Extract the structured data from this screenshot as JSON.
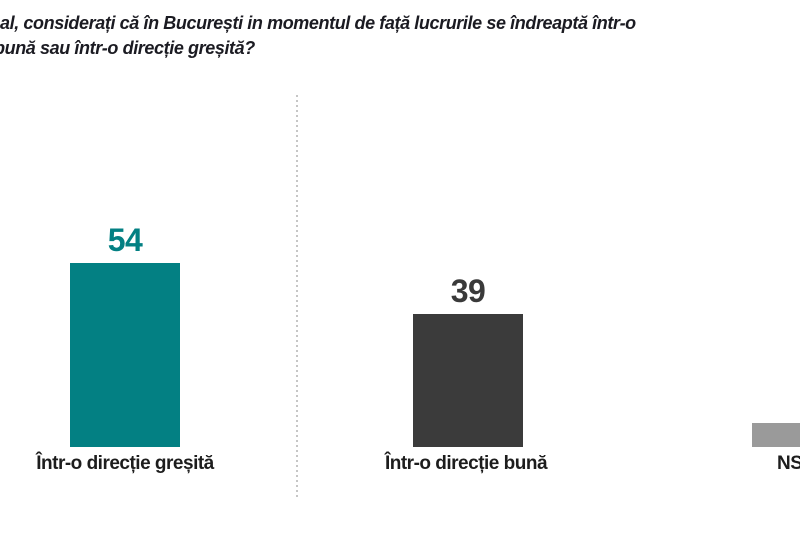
{
  "title": {
    "line1": "al, considerați că în București in momentul de față lucrurile se îndreaptă într-o",
    "line2": "bună sau într-o direcție greșită?"
  },
  "chart_data": {
    "type": "bar",
    "title": "al, considerați că în București in momentul de față lucrurile se îndreaptă într-o bună sau într-o direcție greșită? (question partially cropped at left edge)",
    "categories": [
      "Într-o direcție greșită",
      "Într-o direcție bună",
      "NS"
    ],
    "values": [
      54,
      39,
      7
    ],
    "value_labels": [
      "54",
      "39",
      ""
    ],
    "xlabel": "",
    "ylabel": "",
    "ylim": [
      0,
      60
    ],
    "grid": false,
    "legend": "none",
    "notes": "Third bar and its label are cut off by the right edge of the image; its value (~7) is estimated from bar height. Dashed vertical divider separates first and second bars."
  },
  "colors": {
    "bars": [
      "#038083",
      "#3b3b3b",
      "#9a9a9a"
    ],
    "value_labels": [
      "#038083",
      "#3a3a3a",
      "#9a9a9a"
    ],
    "title_text": "#1b1b22",
    "category_text": "#1d1d1d",
    "divider": "#c6c6c6",
    "background": "#ffffff"
  }
}
